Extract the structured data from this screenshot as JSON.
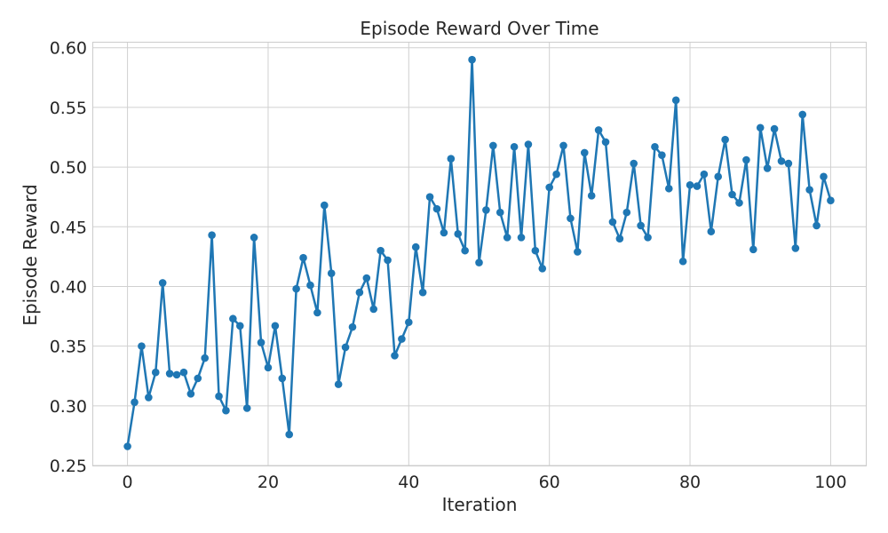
{
  "chart_data": {
    "type": "line",
    "title": "Episode Reward Over Time",
    "xlabel": "Iteration",
    "ylabel": "Episode Reward",
    "xlim": [
      -5,
      105
    ],
    "ylim": [
      0.25,
      0.605
    ],
    "x_ticks": [
      0,
      20,
      40,
      60,
      80,
      100
    ],
    "x_tick_labels": [
      "0",
      "20",
      "40",
      "60",
      "80",
      "100"
    ],
    "y_ticks": [
      0.25,
      0.3,
      0.35,
      0.4,
      0.45,
      0.5,
      0.55,
      0.6
    ],
    "y_tick_labels": [
      "0.25",
      "0.30",
      "0.35",
      "0.40",
      "0.45",
      "0.50",
      "0.55",
      "0.60"
    ],
    "grid": true,
    "markers": true,
    "color": "#1f77b4",
    "series": [
      {
        "x": [
          0,
          1,
          2,
          3,
          4,
          5,
          6,
          7,
          8,
          9,
          10,
          11,
          12,
          13,
          14,
          15,
          16,
          17,
          18,
          19,
          20,
          21,
          22,
          23,
          24,
          25,
          26,
          27,
          28,
          29,
          30,
          31,
          32,
          33,
          34,
          35,
          36,
          37,
          38,
          39,
          40,
          41,
          42,
          43,
          44,
          45,
          46,
          47,
          48,
          49,
          50,
          51,
          52,
          53,
          54,
          55,
          56,
          57,
          58,
          59,
          60,
          61,
          62,
          63,
          64,
          65,
          66,
          67,
          68,
          69,
          70,
          71,
          72,
          73,
          74,
          75,
          76,
          77,
          78,
          79,
          80,
          81,
          82,
          83,
          84,
          85,
          86,
          87,
          88,
          89,
          90,
          91,
          92,
          93,
          94,
          95,
          96,
          97,
          98,
          99,
          100
        ],
        "values": [
          0.266,
          0.303,
          0.35,
          0.307,
          0.328,
          0.403,
          0.327,
          0.326,
          0.328,
          0.31,
          0.323,
          0.34,
          0.443,
          0.308,
          0.296,
          0.373,
          0.367,
          0.298,
          0.441,
          0.353,
          0.332,
          0.367,
          0.323,
          0.276,
          0.398,
          0.424,
          0.401,
          0.378,
          0.468,
          0.411,
          0.318,
          0.349,
          0.366,
          0.395,
          0.407,
          0.381,
          0.43,
          0.422,
          0.342,
          0.356,
          0.37,
          0.433,
          0.395,
          0.475,
          0.465,
          0.445,
          0.507,
          0.444,
          0.43,
          0.59,
          0.42,
          0.464,
          0.518,
          0.462,
          0.441,
          0.517,
          0.441,
          0.519,
          0.43,
          0.415,
          0.483,
          0.494,
          0.518,
          0.457,
          0.429,
          0.512,
          0.476,
          0.531,
          0.521,
          0.454,
          0.44,
          0.462,
          0.503,
          0.451,
          0.441,
          0.517,
          0.51,
          0.482,
          0.556,
          0.421,
          0.485,
          0.484,
          0.494,
          0.446,
          0.492,
          0.523,
          0.477,
          0.47,
          0.506,
          0.431,
          0.533,
          0.499,
          0.532,
          0.505,
          0.503,
          0.432,
          0.544,
          0.481,
          0.451,
          0.492,
          0.472
        ]
      }
    ]
  }
}
